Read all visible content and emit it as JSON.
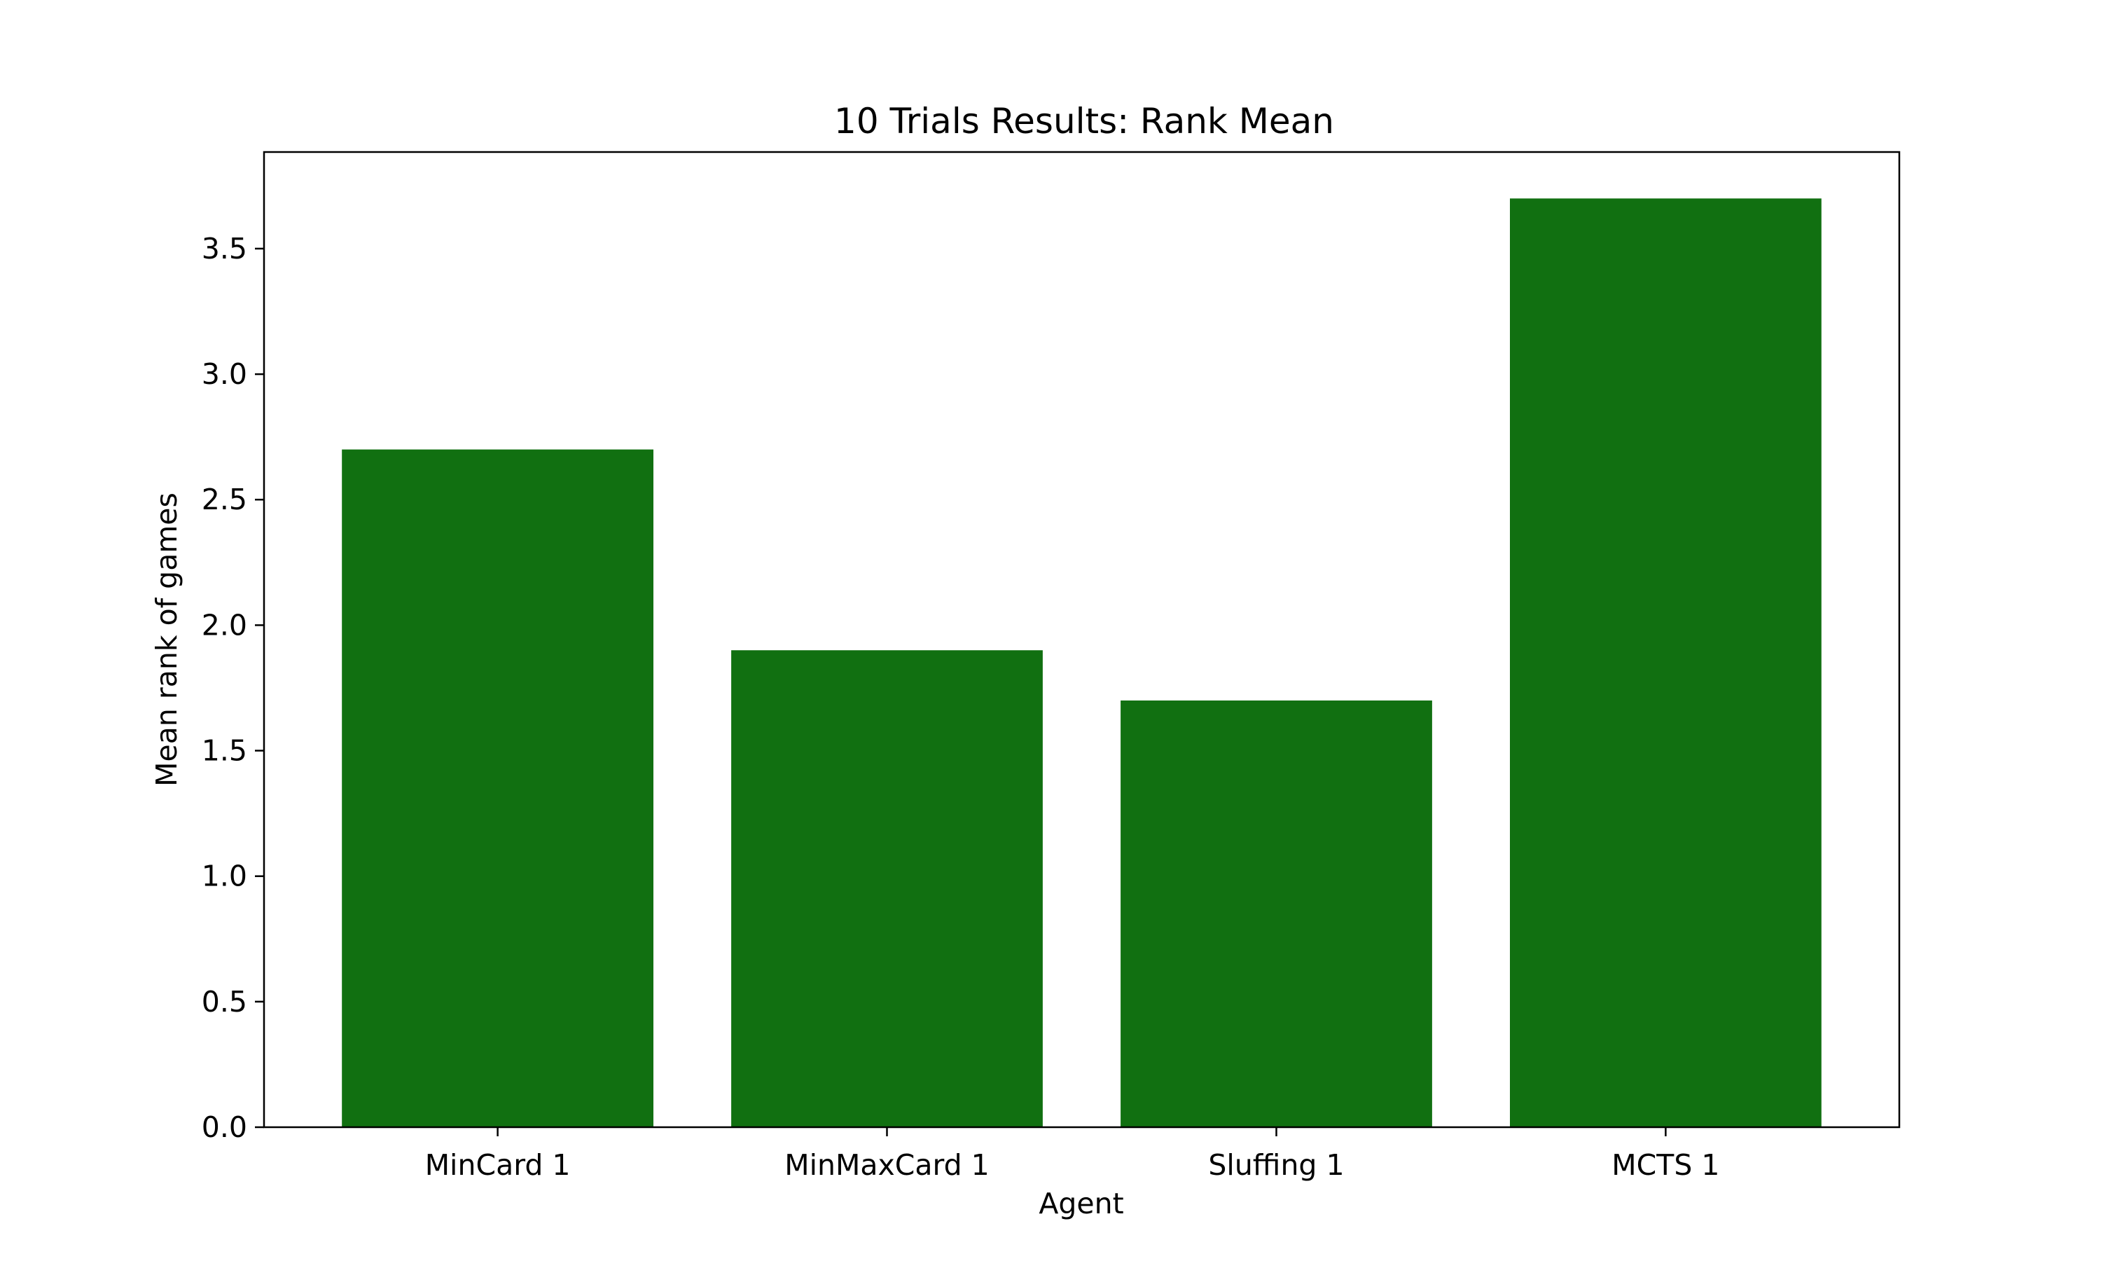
{
  "chart_data": {
    "type": "bar",
    "title": "10 Trials Results: Rank Mean",
    "xlabel": "Agent",
    "ylabel": "Mean rank of games",
    "categories": [
      "MinCard 1",
      "MinMaxCard 1",
      "Sluffing 1",
      "MCTS 1"
    ],
    "values": [
      2.7,
      1.9,
      1.7,
      3.7
    ],
    "ylim": [
      0,
      3.885
    ],
    "yticks": [
      0.0,
      0.5,
      1.0,
      1.5,
      2.0,
      2.5,
      3.0,
      3.5
    ],
    "ytick_labels": [
      "0.0",
      "0.5",
      "1.0",
      "1.5",
      "2.0",
      "2.5",
      "3.0",
      "3.5"
    ],
    "bar_color": "#117011",
    "grid": false,
    "legend": "none"
  }
}
